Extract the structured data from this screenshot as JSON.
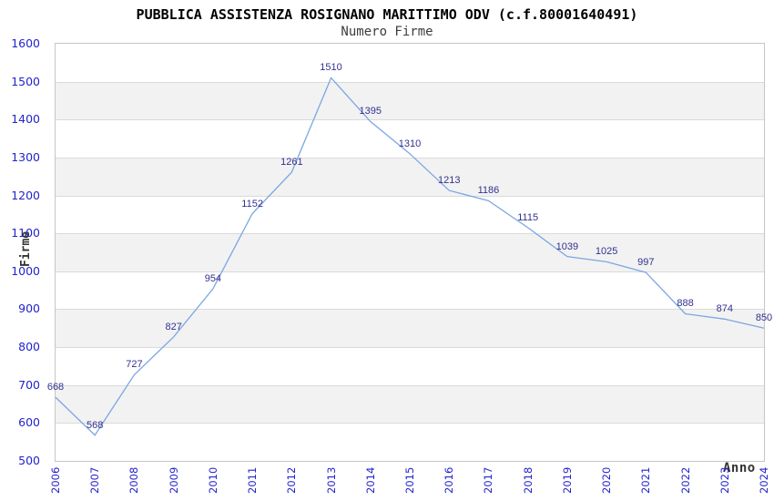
{
  "chart_data": {
    "type": "line",
    "title": "PUBBLICA ASSISTENZA ROSIGNANO MARITTIMO ODV (c.f.80001640491)",
    "subtitle": "Numero Firme",
    "xlabel": "Anno",
    "ylabel": "Firme",
    "categories": [
      "2006",
      "2007",
      "2008",
      "2009",
      "2010",
      "2011",
      "2012",
      "2013",
      "2014",
      "2015",
      "2016",
      "2017",
      "2018",
      "2019",
      "2020",
      "2021",
      "2022",
      "2023",
      "2024"
    ],
    "values": [
      668,
      568,
      727,
      827,
      954,
      1152,
      1261,
      1510,
      1395,
      1310,
      1213,
      1186,
      1115,
      1039,
      1025,
      997,
      888,
      874,
      850
    ],
    "ylim": [
      500,
      1600
    ],
    "ytick_step": 100,
    "grid": true,
    "legend": "none",
    "point_labels_visible": true,
    "colors": {
      "line": "#7aa7e2",
      "tick_label": "#2323cd",
      "value_label": "#31318f",
      "band_alt": "#f2f2f2",
      "grid_line": "#dadada",
      "plot_border": "#c6c6c6",
      "title": "#000000",
      "subtitle": "#3c3c3c",
      "axis_title": "#333333"
    }
  }
}
